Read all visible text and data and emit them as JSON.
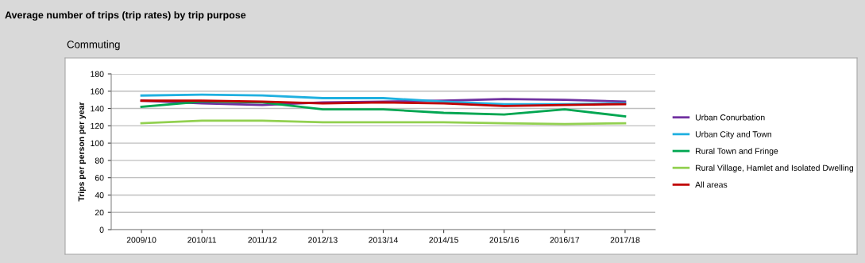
{
  "chart_data": {
    "type": "line",
    "title": "Average number of trips (trip rates) by trip purpose",
    "subtitle": "Commuting",
    "ylabel": "Trips per person per year",
    "categories": [
      "2009/10",
      "2010/11",
      "2011/12",
      "2012/13",
      "2013/14",
      "2014/15",
      "2015/16",
      "2016/17",
      "2017/18"
    ],
    "series": [
      {
        "name": "Urban Conurbation",
        "color": "#7030a0",
        "values": [
          149,
          146,
          144,
          147,
          148,
          149,
          151,
          150,
          148
        ]
      },
      {
        "name": "Urban City and Town",
        "color": "#1fb0e0",
        "values": [
          155,
          156,
          155,
          152,
          152,
          148,
          145,
          145,
          146
        ]
      },
      {
        "name": "Rural Town and Fringe",
        "color": "#00a651",
        "values": [
          142,
          148,
          147,
          139,
          139,
          135,
          133,
          139,
          131
        ]
      },
      {
        "name": "Rural Village, Hamlet and Isolated Dwelling",
        "color": "#92d050",
        "values": [
          123,
          126,
          126,
          124,
          124,
          124,
          123,
          122,
          123
        ]
      },
      {
        "name": "All areas",
        "color": "#c00000",
        "values": [
          149,
          149,
          148,
          146,
          147,
          146,
          143,
          144,
          145
        ]
      }
    ],
    "ylim": [
      0,
      180
    ],
    "yticks": [
      0,
      20,
      40,
      60,
      80,
      100,
      120,
      140,
      160,
      180
    ],
    "grid": "y",
    "legend": "right",
    "marker": "none",
    "line_style": "solid"
  }
}
